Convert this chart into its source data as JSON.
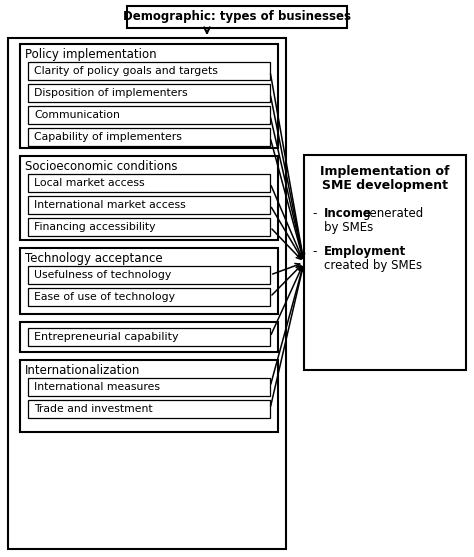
{
  "title": "Demographic: types of businesses",
  "bg_color": "#ffffff",
  "border_color": "#000000",
  "left_groups": [
    {
      "header": "Policy implementation",
      "items": [
        "Clarity of policy goals and targets",
        "Disposition of implementers",
        "Communication",
        "Capability of implementers"
      ],
      "standalone": false
    },
    {
      "header": "Socioeconomic conditions",
      "items": [
        "Local market access",
        "International market access",
        "Financing accessibility"
      ],
      "standalone": false
    },
    {
      "header": "Technology acceptance",
      "items": [
        "Usefulness of technology",
        "Ease of use of technology"
      ],
      "standalone": false
    },
    {
      "header": "Entrepreneurial capability",
      "items": [],
      "standalone": true
    },
    {
      "header": "Internationalization",
      "items": [
        "International measures",
        "Trade and investment"
      ],
      "standalone": false
    }
  ],
  "right_box_title_line1": "Implementation of",
  "right_box_title_line2": "SME development",
  "bullet1_bold": "Income",
  "bullet1_rest": " generated\nby SMEs",
  "bullet2_bold": "Employment",
  "bullet2_rest": "\ncreated by SMEs",
  "figw": 4.74,
  "figh": 5.57,
  "dpi": 100
}
